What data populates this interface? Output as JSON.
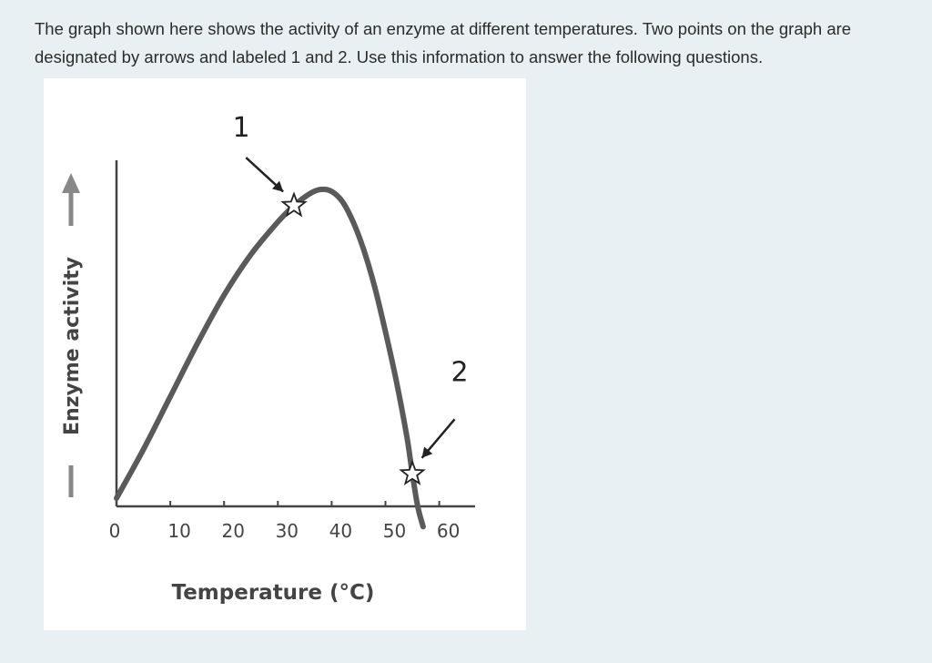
{
  "question": {
    "text": "The graph shown here shows the activity of an enzyme at different temperatures. Two points on the graph are designated by arrows and labeled 1 and 2. Use this information to answer the following questions."
  },
  "colors": {
    "page_background": "#e8f0f3",
    "card_background": "#ffffff",
    "curve": "#555555",
    "axis": "#333333",
    "text": "#2b2b2b"
  },
  "chart_data": {
    "type": "line",
    "title": "",
    "xlabel": "Temperature (°C)",
    "ylabel": "Enzyme activity",
    "xlim": [
      0,
      60
    ],
    "x_ticks": [
      "0",
      "10",
      "20",
      "30",
      "40",
      "50",
      "60"
    ],
    "y_ticks": [],
    "y_axis_has_arrow": true,
    "grid": false,
    "series": [
      {
        "x": [
          0,
          5,
          10,
          15,
          20,
          25,
          30,
          33,
          36,
          38,
          40,
          42,
          44,
          46,
          48,
          50,
          52,
          54,
          55,
          56,
          57
        ],
        "y": [
          0.02,
          0.14,
          0.27,
          0.4,
          0.52,
          0.62,
          0.7,
          0.74,
          0.77,
          0.78,
          0.775,
          0.75,
          0.7,
          0.63,
          0.54,
          0.43,
          0.31,
          0.17,
          0.08,
          0.0,
          -0.05
        ]
      }
    ],
    "annotations": [
      {
        "label": "1",
        "x": 33,
        "y": 0.74,
        "marker": "star"
      },
      {
        "label": "2",
        "x": 55,
        "y": 0.08,
        "marker": "star"
      }
    ]
  }
}
